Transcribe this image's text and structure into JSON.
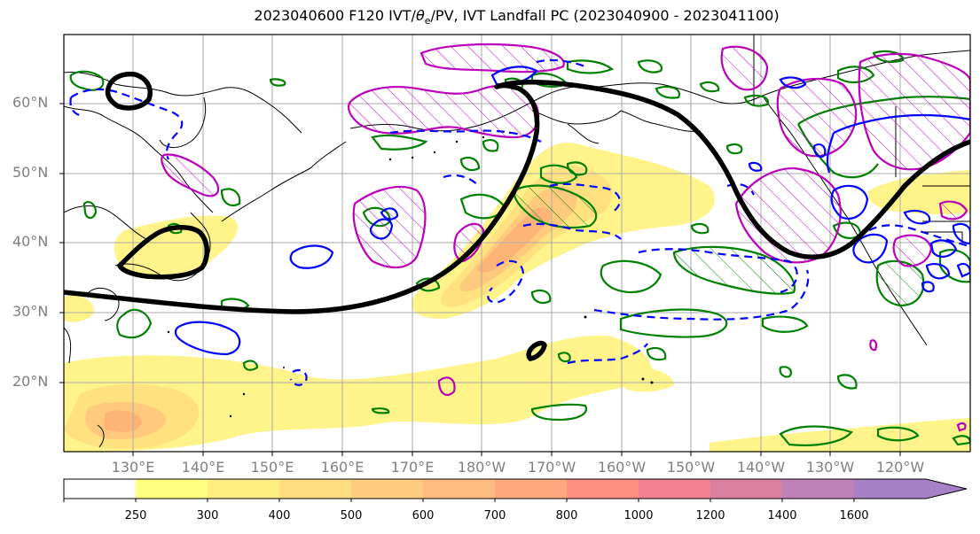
{
  "title_main": "2023040600 F120 IVT/",
  "title_theta": "θ",
  "title_sub": "e",
  "title_rest": "/PV, IVT Landfall PC (2023040900 - 2023041100)",
  "lat_labels": [
    "60°N",
    "50°N",
    "40°N",
    "30°N",
    "20°N"
  ],
  "lon_labels": [
    "130°E",
    "140°E",
    "150°E",
    "160°E",
    "170°E",
    "180°W",
    "170°W",
    "160°W",
    "150°W",
    "140°W",
    "130°W",
    "120°W"
  ],
  "colorbar": {
    "levels": [
      "250",
      "300",
      "400",
      "500",
      "600",
      "700",
      "800",
      "1000",
      "1200",
      "1400",
      "1600"
    ],
    "colors": [
      "#ffff80",
      "#ffee80",
      "#ffdd80",
      "#ffcc80",
      "#ffbb80",
      "#ffa880",
      "#ff9080",
      "#f48090",
      "#dc80a0",
      "#c080b8",
      "#a880c8"
    ],
    "extend": "max"
  },
  "legend_colors": {
    "ivt_fill_low": "#fff383",
    "ivt_fill_high": "#ffb070",
    "pv_contour": "#000000",
    "theta_e_solid": "#0000ff",
    "theta_e_dashed": "#0000ff",
    "green_contour": "#008000",
    "magenta_contour": "#bb00bb"
  }
}
